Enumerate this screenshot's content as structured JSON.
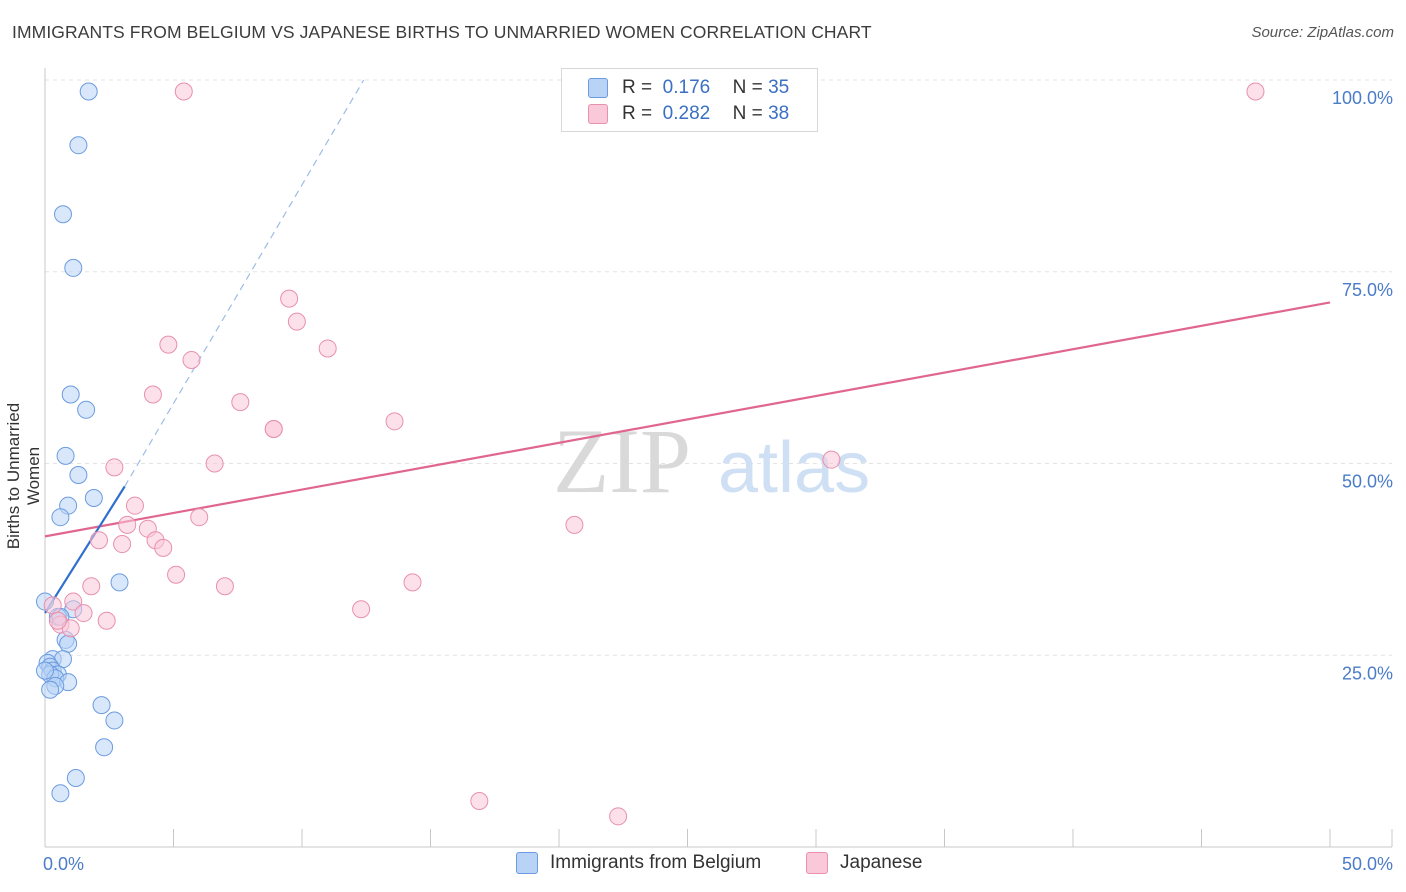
{
  "title": "IMMIGRANTS FROM BELGIUM VS JAPANESE BIRTHS TO UNMARRIED WOMEN CORRELATION CHART",
  "source": "Source: ZipAtlas.com",
  "watermark": {
    "zip": "ZIP",
    "atlas": "atlas"
  },
  "legend_top": {
    "r_label": "R =",
    "n_label": "N =",
    "rows": [
      {
        "r": "0.176",
        "n": "35",
        "color": "#b8d3f5",
        "border": "#6c9be0"
      },
      {
        "r": "0.282",
        "n": "38",
        "color": "#f9c9d9",
        "border": "#e890ae"
      }
    ]
  },
  "colors": {
    "belgium_fill": "#b8d3f5",
    "belgium_stroke": "#6c9be0",
    "belgium_line": "#2f6fce",
    "japanese_fill": "#f9c9d9",
    "japanese_stroke": "#e890ae",
    "japanese_line": "#e0668e",
    "grid": "#e3e3e3",
    "tick_text": "#4a7cc7"
  },
  "chart_data": {
    "type": "scatter",
    "title": "IMMIGRANTS FROM BELGIUM VS JAPANESE BIRTHS TO UNMARRIED WOMEN CORRELATION CHART",
    "xlabel": "",
    "ylabel": "Births to Unmarried Women",
    "xlim": [
      0,
      50
    ],
    "ylim": [
      0,
      100
    ],
    "x_ticks": [
      {
        "v": 0,
        "label": "0.0%"
      },
      {
        "v": 50,
        "label": "50.0%"
      }
    ],
    "y_ticks": [
      {
        "v": 25,
        "label": "25.0%"
      },
      {
        "v": 50,
        "label": "50.0%"
      },
      {
        "v": 75,
        "label": "75.0%"
      },
      {
        "v": 100,
        "label": "100.0%"
      }
    ],
    "series": [
      {
        "name": "Immigrants from Belgium",
        "r": 0.176,
        "n": 35,
        "points": [
          [
            1.7,
            98.5
          ],
          [
            1.3,
            91.5
          ],
          [
            0.7,
            82.5
          ],
          [
            1.1,
            75.5
          ],
          [
            1.0,
            59.0
          ],
          [
            1.6,
            57.0
          ],
          [
            0.8,
            51.0
          ],
          [
            1.3,
            48.5
          ],
          [
            1.9,
            45.5
          ],
          [
            0.9,
            44.5
          ],
          [
            0.6,
            43.0
          ],
          [
            2.9,
            34.5
          ],
          [
            0.0,
            32.0
          ],
          [
            1.1,
            31.0
          ],
          [
            0.5,
            30.0
          ],
          [
            0.6,
            30.0
          ],
          [
            0.8,
            27.0
          ],
          [
            0.9,
            26.5
          ],
          [
            0.3,
            24.5
          ],
          [
            0.7,
            24.5
          ],
          [
            0.1,
            24.0
          ],
          [
            0.2,
            23.5
          ],
          [
            0.3,
            23.0
          ],
          [
            0.5,
            22.5
          ],
          [
            0.2,
            22.5
          ],
          [
            0.4,
            22.0
          ],
          [
            0.9,
            21.5
          ],
          [
            0.4,
            21.0
          ],
          [
            0.2,
            20.5
          ],
          [
            2.2,
            18.5
          ],
          [
            2.7,
            16.5
          ],
          [
            2.3,
            13.0
          ],
          [
            1.2,
            9.0
          ],
          [
            0.6,
            7.0
          ],
          [
            0.0,
            23.0
          ]
        ],
        "trend": {
          "x0": 0.0,
          "y0": 30.5,
          "x1": 3.1,
          "y1": 47.0,
          "dash_x1": 12.4,
          "dash_y1": 100.0
        }
      },
      {
        "name": "Japanese",
        "r": 0.282,
        "n": 38,
        "points": [
          [
            5.4,
            98.5
          ],
          [
            47.1,
            98.5
          ],
          [
            9.5,
            71.5
          ],
          [
            9.8,
            68.5
          ],
          [
            4.8,
            65.5
          ],
          [
            11.0,
            65.0
          ],
          [
            5.7,
            63.5
          ],
          [
            4.2,
            59.0
          ],
          [
            7.6,
            58.0
          ],
          [
            8.9,
            54.5
          ],
          [
            8.9,
            54.5
          ],
          [
            13.6,
            55.5
          ],
          [
            6.6,
            50.0
          ],
          [
            2.7,
            49.5
          ],
          [
            30.6,
            50.5
          ],
          [
            3.5,
            44.5
          ],
          [
            6.0,
            43.0
          ],
          [
            3.2,
            42.0
          ],
          [
            4.0,
            41.5
          ],
          [
            20.6,
            42.0
          ],
          [
            2.1,
            40.0
          ],
          [
            4.3,
            40.0
          ],
          [
            3.0,
            39.5
          ],
          [
            4.6,
            39.0
          ],
          [
            5.1,
            35.5
          ],
          [
            14.3,
            34.5
          ],
          [
            7.0,
            34.0
          ],
          [
            1.8,
            34.0
          ],
          [
            1.1,
            32.0
          ],
          [
            12.3,
            31.0
          ],
          [
            1.5,
            30.5
          ],
          [
            2.4,
            29.5
          ],
          [
            0.6,
            29.0
          ],
          [
            1.0,
            28.5
          ],
          [
            0.3,
            31.5
          ],
          [
            16.9,
            6.0
          ],
          [
            22.3,
            4.0
          ],
          [
            0.5,
            29.5
          ]
        ],
        "trend": {
          "x0": 0.0,
          "y0": 40.5,
          "x1": 50.0,
          "y1": 71.0
        }
      }
    ]
  },
  "bottom_legend": [
    {
      "label": "Immigrants from Belgium"
    },
    {
      "label": "Japanese"
    }
  ]
}
